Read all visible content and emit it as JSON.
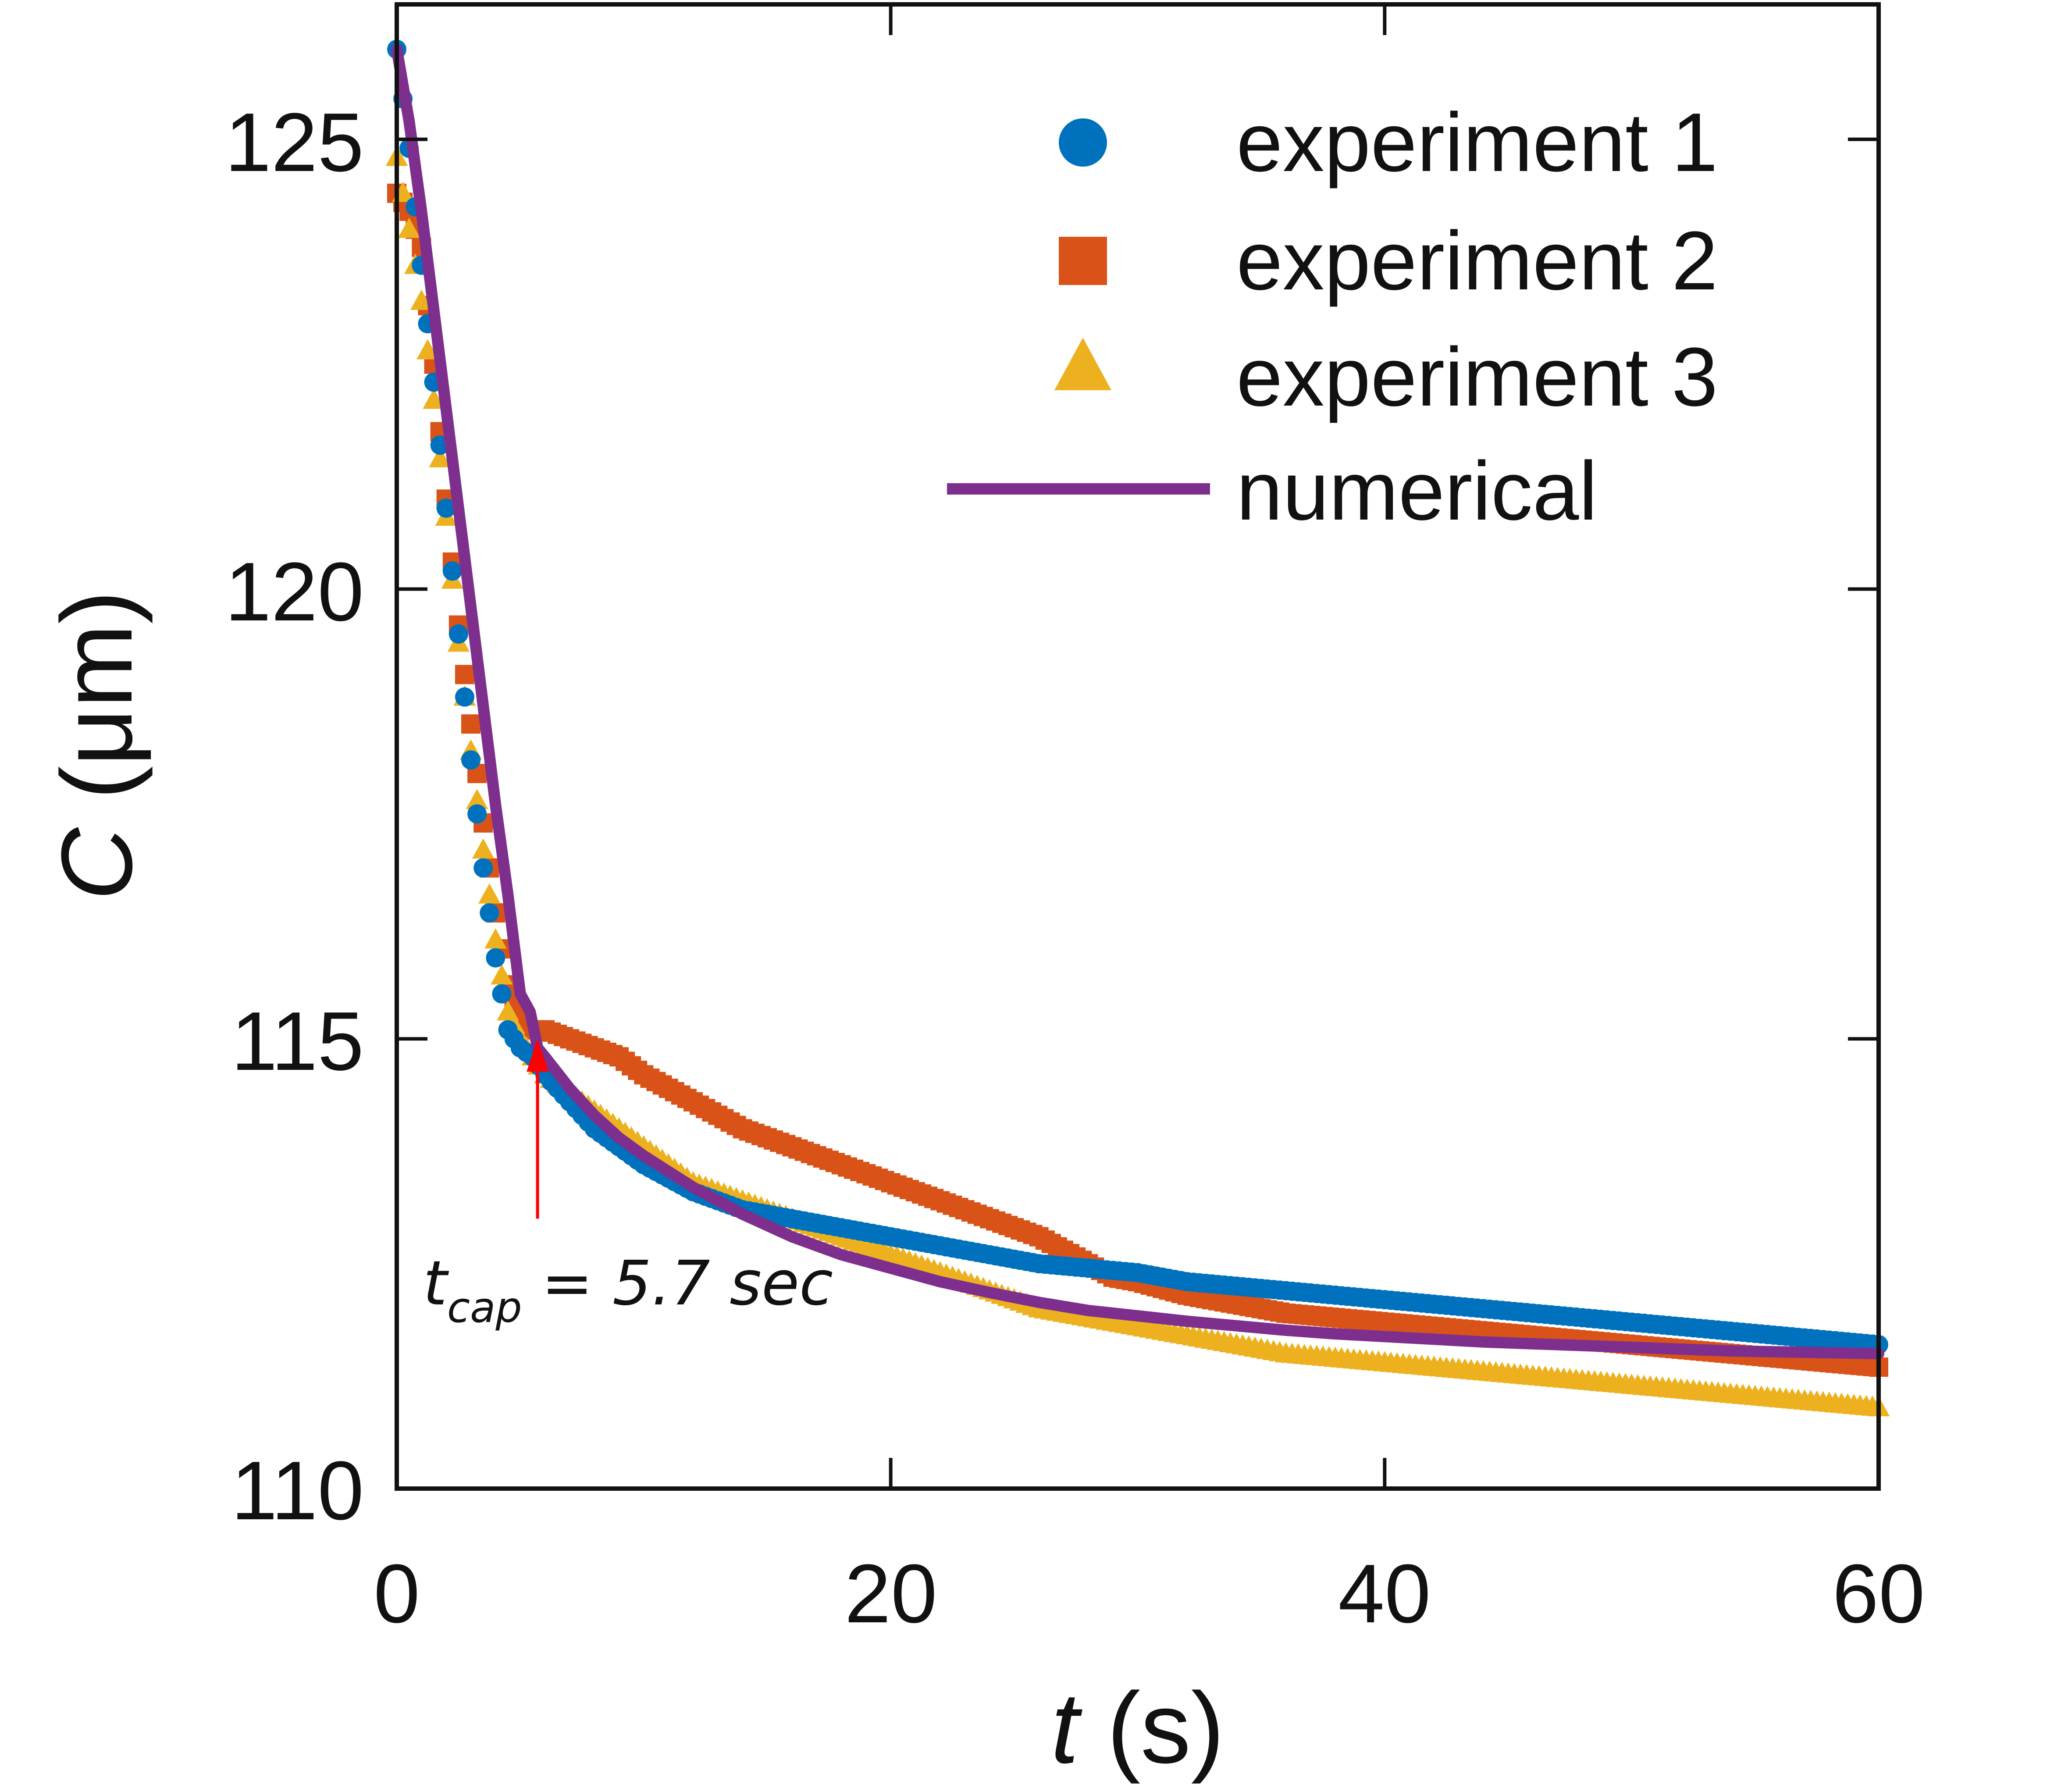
{
  "chart_data": {
    "type": "scatter",
    "title": "",
    "xlabel_var": "t",
    "xlabel_unit": " (s)",
    "ylabel_var": "C",
    "ylabel_unit": " (μm)",
    "xlim": [
      0,
      60
    ],
    "ylim": [
      110,
      126.5
    ],
    "xticks": [
      "0",
      "20",
      "40",
      "60"
    ],
    "yticks": [
      "110",
      "115",
      "120",
      "125"
    ],
    "xtick_values": [
      0,
      20,
      40,
      60
    ],
    "ytick_values": [
      110,
      115,
      120,
      125
    ],
    "grid": false,
    "legend_position": "top-right",
    "series": [
      {
        "name": "experiment 1",
        "marker": "circle",
        "color": "#0072BD",
        "x": [
          0,
          0.5,
          1,
          1.5,
          2,
          2.5,
          3,
          3.5,
          4,
          4.5,
          5,
          5.5,
          6,
          7,
          8,
          9,
          10,
          12,
          14,
          16,
          18,
          20,
          22,
          24,
          26,
          28,
          30,
          32,
          34,
          36,
          38,
          40,
          42,
          44,
          46,
          48,
          50,
          52,
          54,
          56,
          58,
          60
        ],
        "y": [
          126,
          124.9,
          123.6,
          122.3,
          120.9,
          119.5,
          118.1,
          116.9,
          115.9,
          115.1,
          114.9,
          114.8,
          114.6,
          114.3,
          114.0,
          113.8,
          113.6,
          113.3,
          113.1,
          113.0,
          112.9,
          112.8,
          112.7,
          112.6,
          112.5,
          112.45,
          112.4,
          112.3,
          112.25,
          112.2,
          112.15,
          112.1,
          112.05,
          112.0,
          111.95,
          111.9,
          111.85,
          111.8,
          111.75,
          111.7,
          111.65,
          111.6
        ]
      },
      {
        "name": "experiment 2",
        "marker": "square",
        "color": "#D95319",
        "x": [
          0,
          0.5,
          1,
          1.5,
          2,
          2.5,
          3,
          3.5,
          4,
          4.5,
          5,
          5.5,
          6,
          7,
          8,
          9,
          10,
          12,
          14,
          16,
          18,
          20,
          22,
          24,
          26,
          28,
          29,
          30,
          32,
          34,
          36,
          38,
          40,
          42,
          44,
          46,
          48,
          50,
          52,
          54,
          56,
          58,
          60
        ],
        "y": [
          124.4,
          124.2,
          123.8,
          122.5,
          121.0,
          119.6,
          118.5,
          117.4,
          116.4,
          115.6,
          115.2,
          115.1,
          115.1,
          115.0,
          114.9,
          114.8,
          114.6,
          114.3,
          114.0,
          113.8,
          113.6,
          113.4,
          113.2,
          113.0,
          112.8,
          112.5,
          112.35,
          112.3,
          112.15,
          112.05,
          111.95,
          111.9,
          111.85,
          111.8,
          111.75,
          111.7,
          111.65,
          111.6,
          111.55,
          111.5,
          111.45,
          111.4,
          111.35
        ]
      },
      {
        "name": "experiment 3",
        "marker": "triangle",
        "color": "#EDB120",
        "x": [
          0,
          0.5,
          1,
          1.5,
          2,
          2.5,
          3,
          3.5,
          4,
          4.5,
          5,
          5.5,
          6,
          7,
          8,
          9,
          10,
          11,
          12,
          13,
          14,
          15,
          16,
          17,
          18,
          19,
          20,
          22,
          24,
          26,
          28,
          30,
          32,
          34,
          36,
          38,
          40,
          42,
          44,
          46,
          48,
          50,
          52,
          54,
          56,
          58,
          60
        ],
        "y": [
          124.8,
          124.0,
          123.2,
          122.1,
          120.8,
          119.4,
          118.2,
          117.1,
          116.1,
          115.3,
          115.0,
          114.8,
          114.6,
          114.4,
          114.2,
          114.0,
          113.8,
          113.6,
          113.4,
          113.3,
          113.2,
          113.1,
          113.0,
          112.9,
          112.8,
          112.7,
          112.6,
          112.4,
          112.2,
          112.0,
          111.9,
          111.8,
          111.7,
          111.6,
          111.5,
          111.45,
          111.4,
          111.35,
          111.3,
          111.25,
          111.2,
          111.15,
          111.1,
          111.05,
          111.0,
          110.95,
          110.9
        ]
      },
      {
        "name": "numerical",
        "marker": "line",
        "color": "#7E2F8E",
        "x": [
          0,
          0.5,
          1,
          1.5,
          2,
          2.5,
          3,
          3.5,
          4,
          4.5,
          5,
          5.4,
          5.7,
          6,
          7,
          8,
          9,
          10,
          12,
          14,
          16,
          18,
          20,
          22,
          24,
          26,
          28,
          30,
          32,
          34,
          36,
          38,
          40,
          42,
          44,
          46,
          48,
          50,
          52,
          54,
          56,
          58,
          60
        ],
        "y": [
          126.0,
          125.2,
          124.2,
          123.1,
          122.0,
          120.9,
          119.8,
          118.7,
          117.6,
          116.6,
          115.5,
          115.3,
          114.9,
          114.8,
          114.45,
          114.15,
          113.9,
          113.7,
          113.35,
          113.05,
          112.8,
          112.6,
          112.45,
          112.3,
          112.18,
          112.07,
          111.98,
          111.92,
          111.86,
          111.81,
          111.76,
          111.72,
          111.69,
          111.66,
          111.63,
          111.61,
          111.59,
          111.57,
          111.55,
          111.53,
          111.52,
          111.51,
          111.5
        ]
      }
    ],
    "annotation": {
      "var": "t",
      "subscript": "cap",
      "text": " = 5.7 sec",
      "x": 5.7,
      "y_tip": 115.0,
      "y_tail": 113.0,
      "color": "#FF0000"
    }
  }
}
